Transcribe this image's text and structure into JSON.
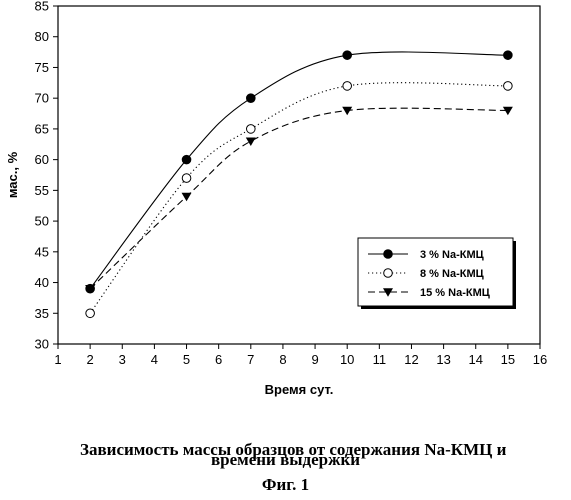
{
  "chart_data": {
    "type": "line",
    "xlabel": "Время сут.",
    "ylabel": "мас., %",
    "xlim": [
      1,
      16
    ],
    "ylim": [
      30,
      85
    ],
    "x_ticks": [
      "1",
      "2",
      "3",
      "4",
      "5",
      "6",
      "7",
      "8",
      "9",
      "10",
      "11",
      "12",
      "13",
      "14",
      "15",
      "16"
    ],
    "y_ticks": [
      "30",
      "35",
      "40",
      "45",
      "50",
      "55",
      "60",
      "65",
      "70",
      "75",
      "80",
      "85"
    ],
    "grid": false,
    "legend_position": "lower-right",
    "series": [
      {
        "name": "3 % Na-КМЦ",
        "marker": "filled-circle",
        "line": "solid",
        "x": [
          2,
          5,
          7,
          10,
          15
        ],
        "y": [
          39,
          60,
          70,
          77,
          77
        ]
      },
      {
        "name": "8 % Na-КМЦ",
        "marker": "open-circle",
        "line": "dotted",
        "x": [
          2,
          5,
          7,
          10,
          15
        ],
        "y": [
          35,
          57,
          65,
          72,
          72
        ]
      },
      {
        "name": "15 % Na-КМЦ",
        "marker": "filled-triangle-down",
        "line": "dashed",
        "x": [
          2,
          5,
          7,
          10,
          15
        ],
        "y": [
          39,
          54,
          63,
          68,
          68
        ]
      }
    ]
  },
  "caption": {
    "line1": "Зависимость массы образцов от содержания Na-КМЦ и",
    "line2": "времени выдержки",
    "figure": "Фиг. 1"
  }
}
